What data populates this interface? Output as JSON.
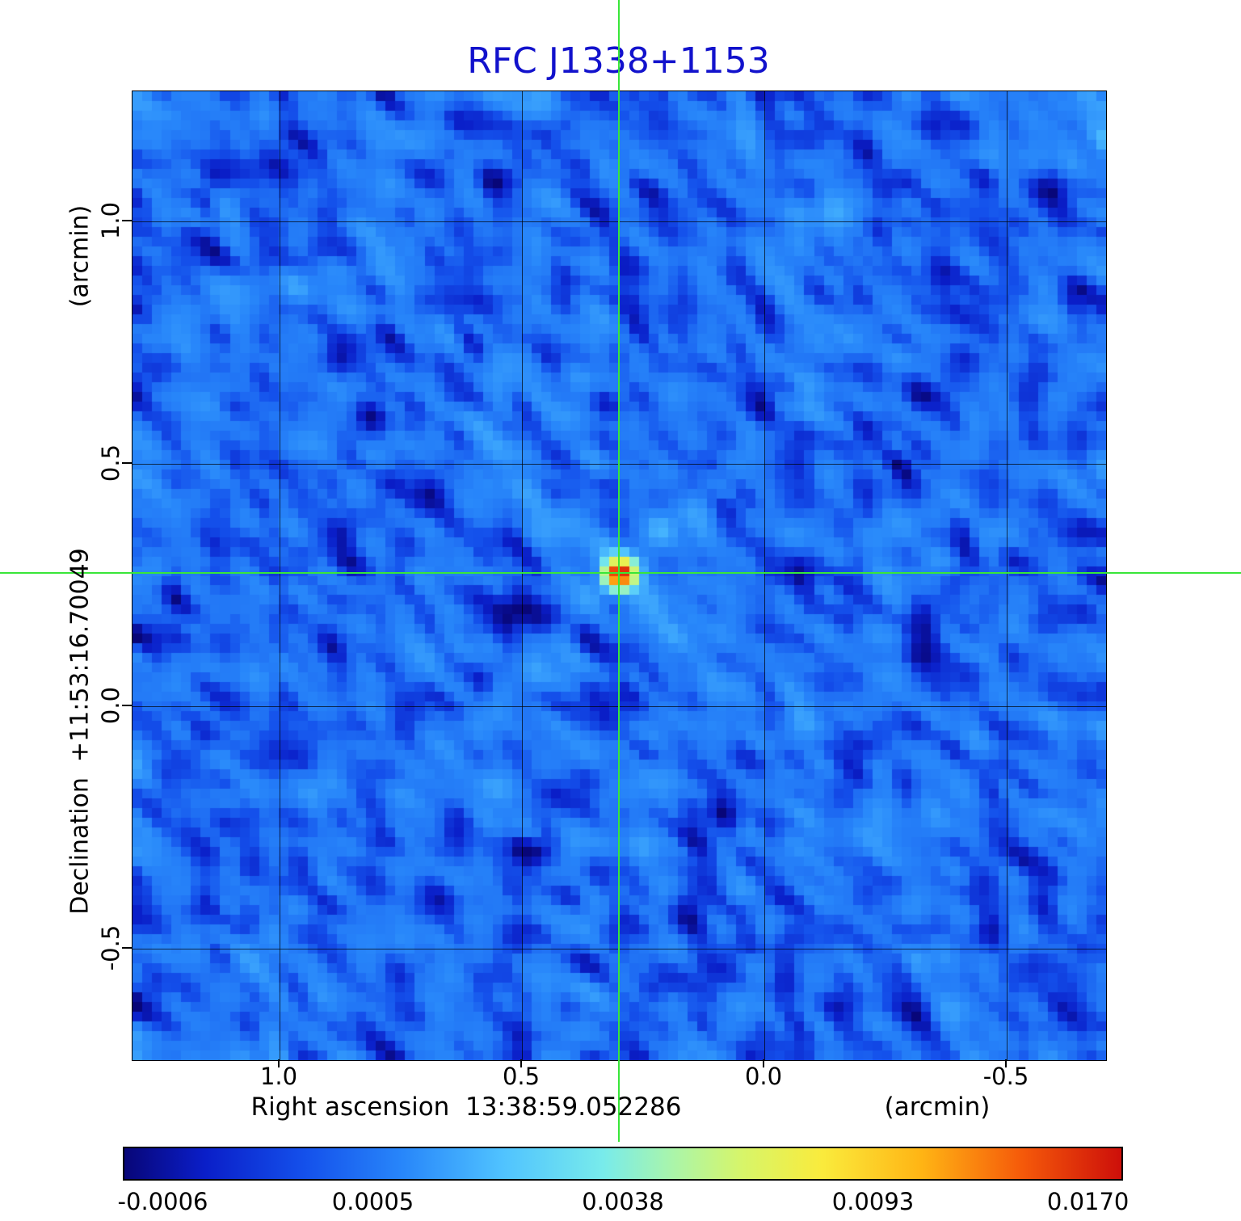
{
  "title": {
    "text": "RFC J1338+1153"
  },
  "axes": {
    "x": {
      "label": "Right ascension  13:38:59.052286",
      "unit": "(arcmin)",
      "ticks": [
        "1.0",
        "0.5",
        "0.0",
        "-0.5"
      ]
    },
    "y": {
      "label": "Declination  +11:53:16.70049",
      "unit": "(arcmin)",
      "ticks": [
        "1.0",
        "0.5",
        "0.0",
        "-0.5"
      ]
    }
  },
  "colorbar": {
    "tick_labels": [
      "-0.0006",
      "0.0005",
      "0.0038",
      "0.0093",
      "0.0170"
    ]
  },
  "colors": {
    "title": "#1212cc",
    "crosshair": "#39e639",
    "grid": "#000000",
    "frame": "#000000",
    "background": "#ffffff"
  },
  "chart_data": {
    "type": "heatmap",
    "title": "RFC J1338+1153",
    "xlabel": "Right ascension 13:38:59.052286 (arcmin)",
    "ylabel": "Declination +11:53:16.70049 (arcmin)",
    "x_ticks_arcmin": [
      1.0,
      0.5,
      0.0,
      -0.5
    ],
    "y_ticks_arcmin": [
      1.0,
      0.5,
      0.0,
      -0.5
    ],
    "x_range_arcmin": [
      1.3,
      -0.7
    ],
    "y_range_arcmin": [
      -0.73,
      1.27
    ],
    "grid": true,
    "crosshair": {
      "ra": "13:38:59.052286",
      "dec": "+11:53:16.70049"
    },
    "value_range": [
      -0.0006,
      0.017
    ],
    "value_scale_anchors": [
      -0.0006,
      0.0005,
      0.0038,
      0.0093,
      0.017
    ],
    "peak": {
      "value": 0.017,
      "x_arcmin": 0.3,
      "y_arcmin": 0.27
    },
    "colormap_stops": [
      {
        "t": 0.0,
        "color": "#080678"
      },
      {
        "t": 0.08,
        "color": "#0a1ec8"
      },
      {
        "t": 0.18,
        "color": "#1450eb"
      },
      {
        "t": 0.28,
        "color": "#2887fa"
      },
      {
        "t": 0.38,
        "color": "#50c3ff"
      },
      {
        "t": 0.48,
        "color": "#78ebeb"
      },
      {
        "t": 0.55,
        "color": "#aaf5aa"
      },
      {
        "t": 0.62,
        "color": "#d7f569"
      },
      {
        "t": 0.7,
        "color": "#faeb3c"
      },
      {
        "t": 0.8,
        "color": "#ffb414"
      },
      {
        "t": 0.9,
        "color": "#f55a0a"
      },
      {
        "t": 1.0,
        "color": "#cd0f0a"
      }
    ]
  }
}
